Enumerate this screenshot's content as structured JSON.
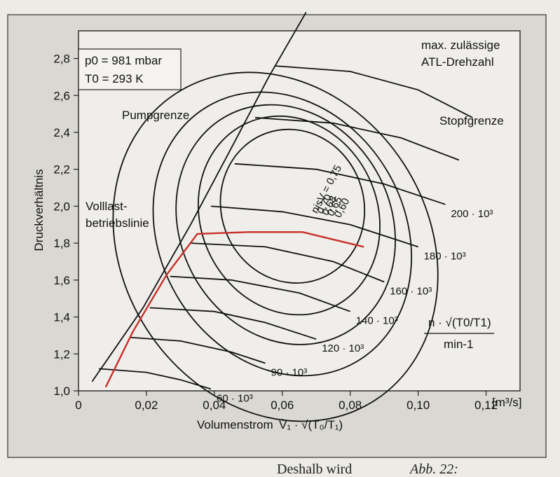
{
  "chart_data": {
    "type": "line",
    "xlabel": "Volumenstrom",
    "xlabel_formula": "V̇₁ · √(T₀/T₁)",
    "x_unit": "[m³/s]",
    "ylabel": "Druckverhältnis",
    "xlim": [
      0,
      0.13
    ],
    "ylim": [
      1.0,
      2.95
    ],
    "x_ticks": [
      "0",
      "0,02",
      "0,04",
      "0,06",
      "0,08",
      "0,10",
      "0,12"
    ],
    "x_tick_values": [
      0,
      0.02,
      0.04,
      0.06,
      0.08,
      0.1,
      0.12
    ],
    "y_ticks": [
      "1,0",
      "1,2",
      "1,4",
      "1,6",
      "1,8",
      "2,0",
      "2,2",
      "2,4",
      "2,6",
      "2,8"
    ],
    "y_tick_values": [
      1.0,
      1.2,
      1.4,
      1.6,
      1.8,
      2.0,
      2.2,
      2.4,
      2.6,
      2.8
    ],
    "conditions": {
      "p0": "p0 = 981 mbar",
      "T0": "T0 = 293 K"
    },
    "speed_legend": {
      "numerator": "n · √(T0/T1)",
      "denominator": "min-1"
    },
    "surge_line_label": "Pumpgrenze",
    "choke_line_label": "Stopfgrenze",
    "max_speed_label": [
      "max. zulässige",
      "ATL-Drehzahl"
    ],
    "full_load_label": [
      "Volllast-",
      "betriebslinie"
    ],
    "surge_line": {
      "x": [
        0.004,
        0.019,
        0.033,
        0.046,
        0.056,
        0.067
      ],
      "y": [
        1.05,
        1.45,
        1.9,
        2.35,
        2.7,
        3.05
      ]
    },
    "full_load_line": {
      "x": [
        0.008,
        0.016,
        0.026,
        0.035,
        0.05,
        0.066,
        0.075,
        0.084
      ],
      "y": [
        1.02,
        1.32,
        1.63,
        1.85,
        1.86,
        1.86,
        1.82,
        1.78
      ]
    },
    "speed_lines": [
      {
        "label": "60 · 10³",
        "x": [
          0.006,
          0.02,
          0.03,
          0.039
        ],
        "y": [
          1.12,
          1.1,
          1.06,
          1.01
        ]
      },
      {
        "label": "90 · 10³",
        "x": [
          0.015,
          0.03,
          0.045,
          0.055
        ],
        "y": [
          1.29,
          1.27,
          1.21,
          1.15
        ]
      },
      {
        "label": "120 · 10³",
        "x": [
          0.021,
          0.04,
          0.055,
          0.07
        ],
        "y": [
          1.45,
          1.43,
          1.37,
          1.28
        ]
      },
      {
        "label": "140 · 10³",
        "x": [
          0.027,
          0.045,
          0.065,
          0.08
        ],
        "y": [
          1.62,
          1.6,
          1.53,
          1.43
        ]
      },
      {
        "label": "160 · 10³",
        "x": [
          0.033,
          0.055,
          0.075,
          0.09
        ],
        "y": [
          1.8,
          1.78,
          1.7,
          1.59
        ]
      },
      {
        "label": "180 · 10³",
        "x": [
          0.039,
          0.06,
          0.08,
          0.1
        ],
        "y": [
          2.0,
          1.97,
          1.9,
          1.78
        ]
      },
      {
        "label": "200 · 10³",
        "x": [
          0.046,
          0.07,
          0.09,
          0.108
        ],
        "y": [
          2.23,
          2.2,
          2.12,
          2.01
        ]
      },
      {
        "label": "",
        "x": [
          0.052,
          0.075,
          0.095,
          0.112
        ],
        "y": [
          2.48,
          2.45,
          2.37,
          2.25
        ]
      },
      {
        "label": "",
        "x": [
          0.058,
          0.08,
          0.1,
          0.116
        ],
        "y": [
          2.76,
          2.73,
          2.63,
          2.48
        ]
      }
    ],
    "efficiency_islands": [
      {
        "label": "nisV = 0,75",
        "center": [
          0.063,
          2.0
        ],
        "rx": 0.021,
        "ry": 0.42,
        "rotation": -20
      },
      {
        "label": "0,70",
        "center": [
          0.062,
          1.95
        ],
        "rx": 0.026,
        "ry": 0.55,
        "rotation": -25
      },
      {
        "label": "0,68",
        "center": [
          0.061,
          1.9
        ],
        "rx": 0.031,
        "ry": 0.67,
        "rotation": -28
      },
      {
        "label": "0,65",
        "center": [
          0.06,
          1.85
        ],
        "rx": 0.036,
        "ry": 0.8,
        "rotation": -30
      },
      {
        "label": "0,60",
        "center": [
          0.058,
          1.78
        ],
        "rx": 0.045,
        "ry": 0.99,
        "rotation": -33
      }
    ]
  },
  "bottom_text": "Deshalb wird",
  "bottom_text_right": "Abb. 22:"
}
